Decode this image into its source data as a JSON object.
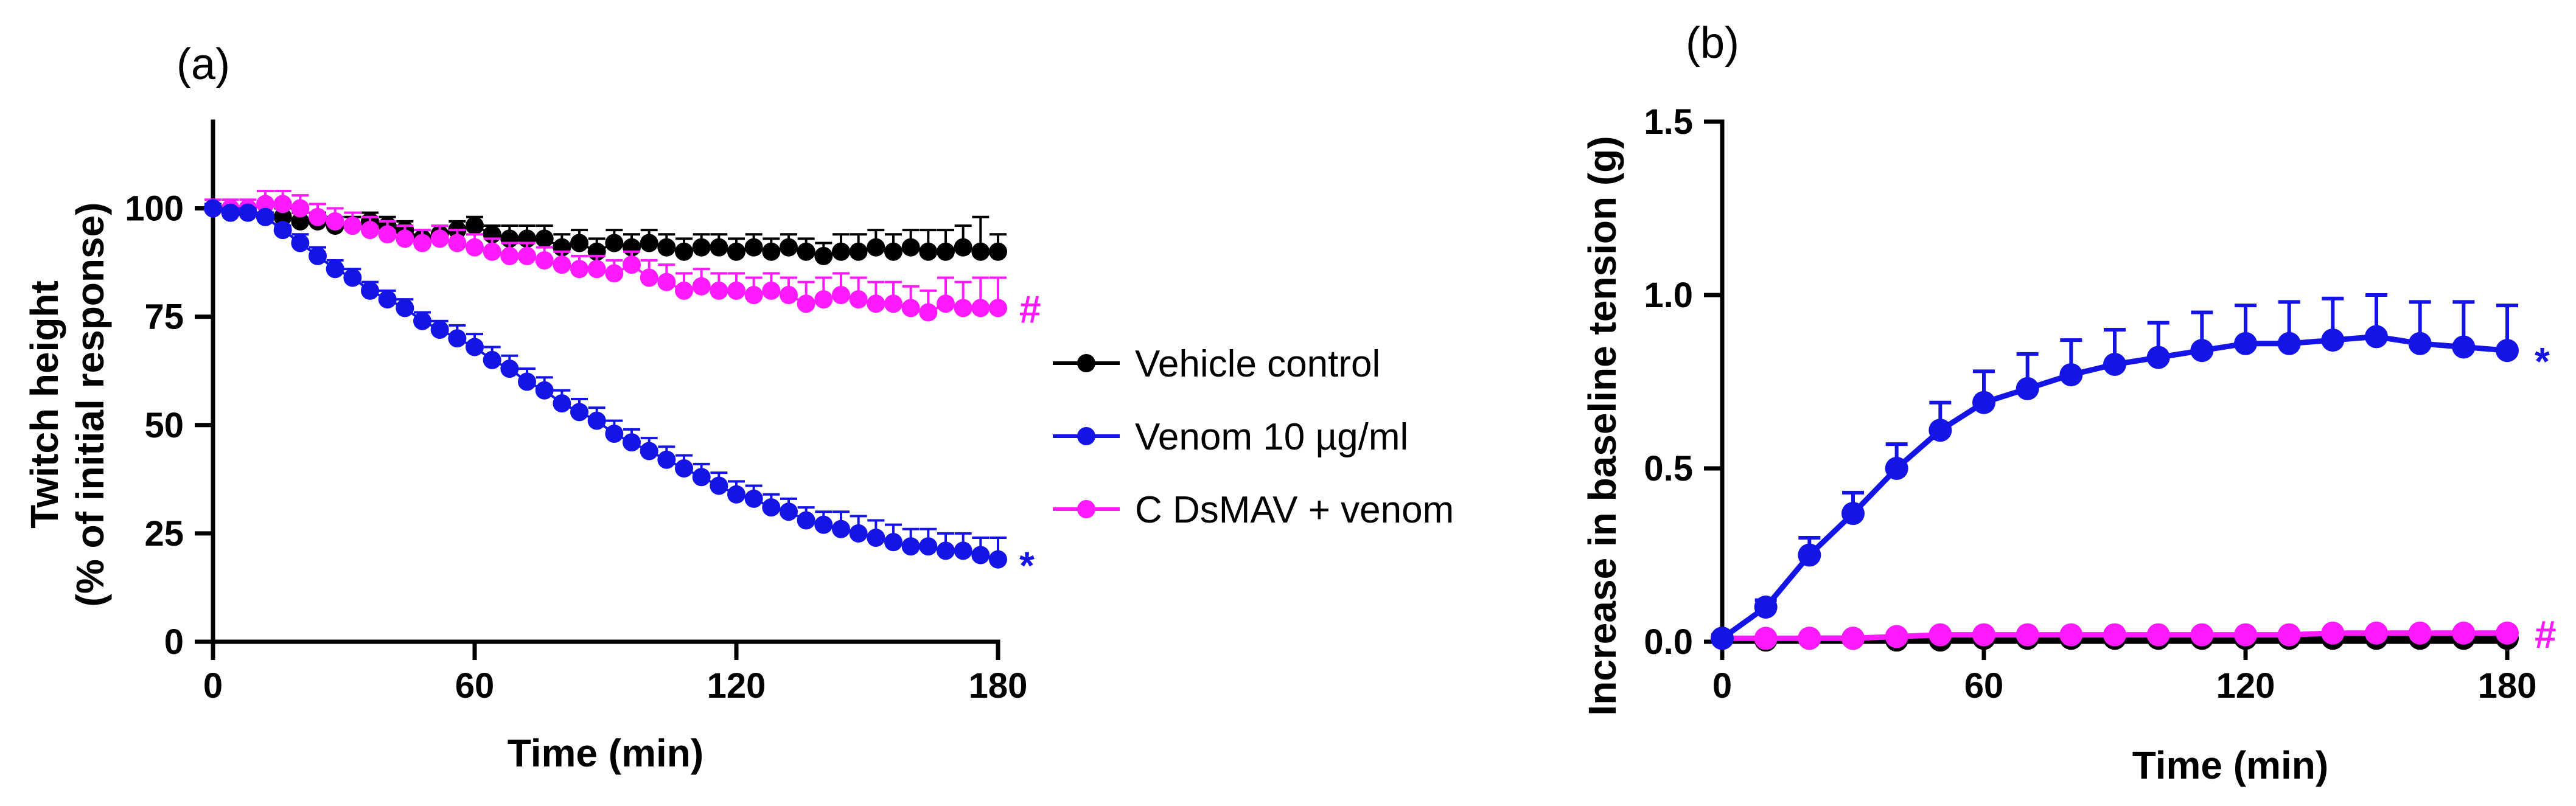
{
  "chart_data": [
    {
      "type": "line",
      "panel_label": "(a)",
      "title": "",
      "xlabel": "Time (min)",
      "ylabel": [
        "Twitch height",
        "(% of initial response)"
      ],
      "xlim": [
        0,
        180
      ],
      "ylim": [
        0,
        120
      ],
      "xticks": [
        0,
        60,
        120,
        180
      ],
      "yticks": [
        0,
        25,
        50,
        75,
        100
      ],
      "grid": false,
      "legend_position": "right",
      "series": [
        {
          "name": "Vehicle control",
          "color": "#000000",
          "x": [
            0,
            4,
            8,
            12,
            16,
            20,
            24,
            28,
            32,
            36,
            40,
            44,
            48,
            52,
            56,
            60,
            64,
            68,
            72,
            76,
            80,
            84,
            88,
            92,
            96,
            100,
            104,
            108,
            112,
            116,
            120,
            124,
            128,
            132,
            136,
            140,
            144,
            148,
            152,
            156,
            160,
            164,
            168,
            172,
            176,
            180
          ],
          "values": [
            100,
            99,
            99,
            98,
            98,
            97,
            97,
            96,
            96,
            97,
            96,
            95,
            93,
            94,
            95,
            96,
            94,
            93,
            93,
            93,
            91,
            92,
            90,
            92,
            91,
            92,
            91,
            90,
            91,
            91,
            90,
            91,
            90,
            91,
            90,
            89,
            90,
            90,
            91,
            90,
            91,
            90,
            90,
            91,
            90,
            90
          ],
          "errors": [
            1,
            1,
            1,
            1,
            2,
            2,
            2,
            2,
            2,
            2,
            2,
            2,
            2,
            2,
            2,
            2,
            2,
            3,
            3,
            3,
            3,
            3,
            3,
            3,
            3,
            3,
            3,
            3,
            3,
            3,
            3,
            3,
            3,
            3,
            3,
            3,
            4,
            4,
            4,
            4,
            4,
            5,
            5,
            5,
            8,
            4
          ]
        },
        {
          "name": "Venom 10 µg/ml",
          "color": "#1414e6",
          "x": [
            0,
            4,
            8,
            12,
            16,
            20,
            24,
            28,
            32,
            36,
            40,
            44,
            48,
            52,
            56,
            60,
            64,
            68,
            72,
            76,
            80,
            84,
            88,
            92,
            96,
            100,
            104,
            108,
            112,
            116,
            120,
            124,
            128,
            132,
            136,
            140,
            144,
            148,
            152,
            156,
            160,
            164,
            168,
            172,
            176,
            180
          ],
          "values": [
            100,
            99,
            99,
            98,
            95,
            92,
            89,
            86,
            84,
            81,
            79,
            77,
            74,
            72,
            70,
            68,
            65,
            63,
            60,
            58,
            55,
            53,
            51,
            48,
            46,
            44,
            42,
            40,
            38,
            36,
            34,
            33,
            31,
            30,
            28,
            27,
            26,
            25,
            24,
            23,
            22,
            22,
            21,
            21,
            20,
            19
          ],
          "errors": [
            1,
            1,
            1,
            1,
            1,
            2,
            2,
            2,
            2,
            2,
            2,
            2,
            2,
            2,
            3,
            3,
            3,
            3,
            3,
            3,
            3,
            3,
            3,
            3,
            3,
            3,
            3,
            3,
            3,
            3,
            3,
            3,
            3,
            3,
            3,
            3,
            4,
            4,
            4,
            4,
            4,
            4,
            4,
            4,
            4,
            5
          ]
        },
        {
          "name": "C DsMAV + venom",
          "color": "#ff1aff",
          "x": [
            0,
            4,
            8,
            12,
            16,
            20,
            24,
            28,
            32,
            36,
            40,
            44,
            48,
            52,
            56,
            60,
            64,
            68,
            72,
            76,
            80,
            84,
            88,
            92,
            96,
            100,
            104,
            108,
            112,
            116,
            120,
            124,
            128,
            132,
            136,
            140,
            144,
            148,
            152,
            156,
            160,
            164,
            168,
            172,
            176,
            180
          ],
          "values": [
            100,
            100,
            100,
            101,
            101,
            100,
            98,
            97,
            96,
            95,
            94,
            93,
            92,
            93,
            92,
            91,
            90,
            89,
            89,
            88,
            87,
            86,
            86,
            85,
            87,
            84,
            83,
            81,
            82,
            81,
            81,
            80,
            81,
            80,
            78,
            79,
            80,
            79,
            78,
            78,
            77,
            76,
            78,
            77,
            77,
            77
          ],
          "errors": [
            2,
            2,
            2,
            3,
            3,
            3,
            3,
            3,
            3,
            3,
            3,
            3,
            3,
            3,
            3,
            3,
            3,
            3,
            3,
            3,
            3,
            3,
            3,
            3,
            3,
            4,
            4,
            4,
            4,
            4,
            4,
            4,
            4,
            4,
            5,
            5,
            5,
            5,
            5,
            5,
            5,
            5,
            6,
            6,
            7,
            7
          ]
        }
      ],
      "annotations": [
        {
          "text": "#",
          "series": "C DsMAV + venom",
          "color": "#ff1aff"
        },
        {
          "text": "*",
          "series": "Venom 10 µg/ml",
          "color": "#1414e6"
        }
      ]
    },
    {
      "type": "line",
      "panel_label": "(b)",
      "title": "",
      "xlabel": "Time (min)",
      "ylabel": [
        "Increase in baseline tension (g)"
      ],
      "xlim": [
        0,
        180
      ],
      "ylim": [
        0,
        1.5
      ],
      "xticks": [
        0,
        60,
        120,
        180
      ],
      "yticks": [
        0.0,
        0.5,
        1.0,
        1.5
      ],
      "ytick_labels": [
        "0.0",
        "0.5",
        "1.0",
        "1.5"
      ],
      "grid": false,
      "series": [
        {
          "name": "Vehicle control",
          "color": "#000000",
          "x": [
            0,
            10,
            20,
            30,
            40,
            50,
            60,
            70,
            80,
            90,
            100,
            110,
            120,
            130,
            140,
            150,
            160,
            170,
            180
          ],
          "values": [
            0.01,
            0.005,
            0.01,
            0.01,
            0.005,
            0.005,
            0.01,
            0.01,
            0.01,
            0.01,
            0.01,
            0.01,
            0.01,
            0.01,
            0.01,
            0.01,
            0.01,
            0.01,
            0.01
          ],
          "errors": [
            0,
            0,
            0,
            0,
            0,
            0,
            0,
            0,
            0,
            0,
            0,
            0,
            0,
            0,
            0,
            0,
            0,
            0,
            0
          ]
        },
        {
          "name": "Venom 10 µg/ml",
          "color": "#1414e6",
          "x": [
            0,
            10,
            20,
            30,
            40,
            50,
            60,
            70,
            80,
            90,
            100,
            110,
            120,
            130,
            140,
            150,
            160,
            170,
            180
          ],
          "values": [
            0.01,
            0.1,
            0.25,
            0.37,
            0.5,
            0.61,
            0.69,
            0.73,
            0.77,
            0.8,
            0.82,
            0.84,
            0.86,
            0.86,
            0.87,
            0.88,
            0.86,
            0.85,
            0.84
          ],
          "errors": [
            0.01,
            0.02,
            0.05,
            0.06,
            0.07,
            0.08,
            0.09,
            0.1,
            0.1,
            0.1,
            0.1,
            0.11,
            0.11,
            0.12,
            0.12,
            0.12,
            0.12,
            0.13,
            0.13
          ]
        },
        {
          "name": "C DsMAV + venom",
          "color": "#ff1aff",
          "x": [
            0,
            10,
            20,
            30,
            40,
            50,
            60,
            70,
            80,
            90,
            100,
            110,
            120,
            130,
            140,
            150,
            160,
            170,
            180
          ],
          "values": [
            0.01,
            0.01,
            0.01,
            0.01,
            0.015,
            0.02,
            0.02,
            0.02,
            0.02,
            0.02,
            0.02,
            0.02,
            0.02,
            0.02,
            0.025,
            0.025,
            0.025,
            0.025,
            0.025
          ],
          "errors": [
            0,
            0,
            0,
            0,
            0,
            0,
            0,
            0,
            0,
            0,
            0,
            0,
            0,
            0,
            0,
            0,
            0,
            0,
            0
          ]
        }
      ],
      "annotations": [
        {
          "text": "*",
          "series": "Venom 10 µg/ml",
          "color": "#1414e6"
        },
        {
          "text": "#",
          "series": "C DsMAV + venom",
          "color": "#ff1aff"
        }
      ]
    }
  ]
}
